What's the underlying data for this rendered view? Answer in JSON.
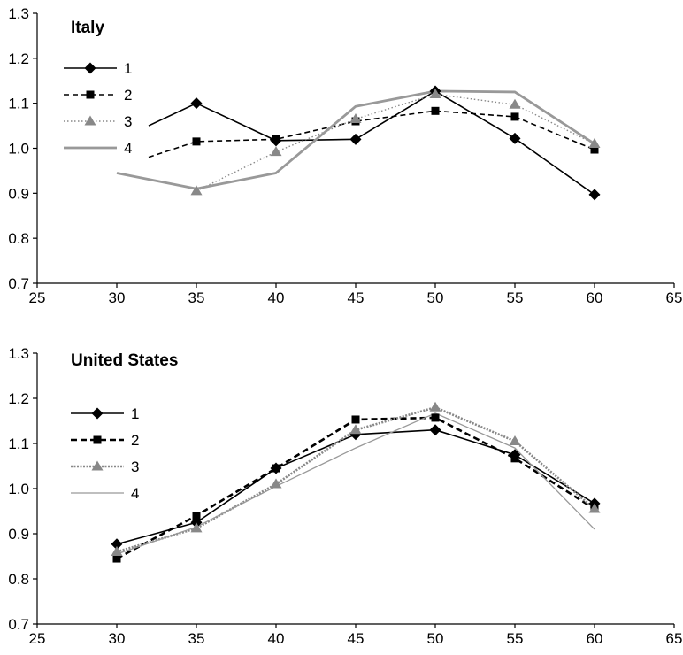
{
  "chart_data": [
    {
      "type": "line",
      "title": "Italy",
      "xlabel": "",
      "ylabel": "",
      "xlim": [
        25,
        65
      ],
      "ylim": [
        0.7,
        1.3
      ],
      "xticks": [
        "25",
        "30",
        "35",
        "40",
        "45",
        "50",
        "55",
        "60",
        "65"
      ],
      "yticks": [
        "0.7",
        "0.8",
        "0.9",
        "1.0",
        "1.1",
        "1.2",
        "1.3"
      ],
      "grid": false,
      "legend_position": "top-left",
      "series": [
        {
          "name": "1",
          "color": "#000000",
          "style": "solid",
          "marker": "diamond",
          "x": [
            32,
            35,
            40,
            45,
            50,
            55,
            60
          ],
          "y": [
            1.05,
            1.1,
            1.017,
            1.02,
            1.127,
            1.022,
            0.897
          ]
        },
        {
          "name": "2",
          "color": "#000000",
          "style": "dashed",
          "marker": "square",
          "x": [
            32,
            35,
            40,
            45,
            50,
            55,
            60
          ],
          "y": [
            0.98,
            1.015,
            1.02,
            1.06,
            1.083,
            1.07,
            0.997
          ]
        },
        {
          "name": "3",
          "color": "#888888",
          "style": "dotted",
          "marker": "triangle",
          "x": [
            35,
            40,
            45,
            50,
            55,
            60
          ],
          "y": [
            0.905,
            0.992,
            1.065,
            1.12,
            1.097,
            1.01
          ]
        },
        {
          "name": "4",
          "color": "#999999",
          "style": "solid-thick",
          "marker": "none",
          "x": [
            30,
            35,
            40,
            45,
            50,
            55,
            60
          ],
          "y": [
            0.945,
            0.91,
            0.945,
            1.093,
            1.127,
            1.125,
            1.01
          ]
        }
      ]
    },
    {
      "type": "line",
      "title": "United States",
      "xlabel": "",
      "ylabel": "",
      "xlim": [
        25,
        65
      ],
      "ylim": [
        0.7,
        1.3
      ],
      "xticks": [
        "25",
        "30",
        "35",
        "40",
        "45",
        "50",
        "55",
        "60",
        "65"
      ],
      "yticks": [
        "0.7",
        "0.8",
        "0.9",
        "1.0",
        "1.1",
        "1.2",
        "1.3"
      ],
      "grid": false,
      "legend_position": "top-left",
      "series": [
        {
          "name": "1",
          "color": "#000000",
          "style": "solid",
          "marker": "diamond",
          "x": [
            30,
            35,
            40,
            45,
            50,
            55,
            60
          ],
          "y": [
            0.877,
            0.925,
            1.045,
            1.12,
            1.13,
            1.075,
            0.967
          ]
        },
        {
          "name": "2",
          "color": "#000000",
          "style": "dashed-thick",
          "marker": "square",
          "x": [
            30,
            35,
            40,
            45,
            50,
            55,
            60
          ],
          "y": [
            0.845,
            0.94,
            1.045,
            1.153,
            1.157,
            1.067,
            0.955
          ]
        },
        {
          "name": "3",
          "color": "#888888",
          "style": "dotted-thick",
          "marker": "triangle",
          "x": [
            30,
            35,
            40,
            45,
            50,
            55,
            60
          ],
          "y": [
            0.86,
            0.912,
            1.01,
            1.13,
            1.18,
            1.105,
            0.955
          ]
        },
        {
          "name": "4",
          "color": "#999999",
          "style": "solid-thin",
          "marker": "none",
          "x": [
            30,
            35,
            40,
            45,
            50,
            55,
            60
          ],
          "y": [
            0.855,
            0.915,
            1.005,
            1.09,
            1.167,
            1.09,
            0.91
          ]
        }
      ]
    }
  ]
}
